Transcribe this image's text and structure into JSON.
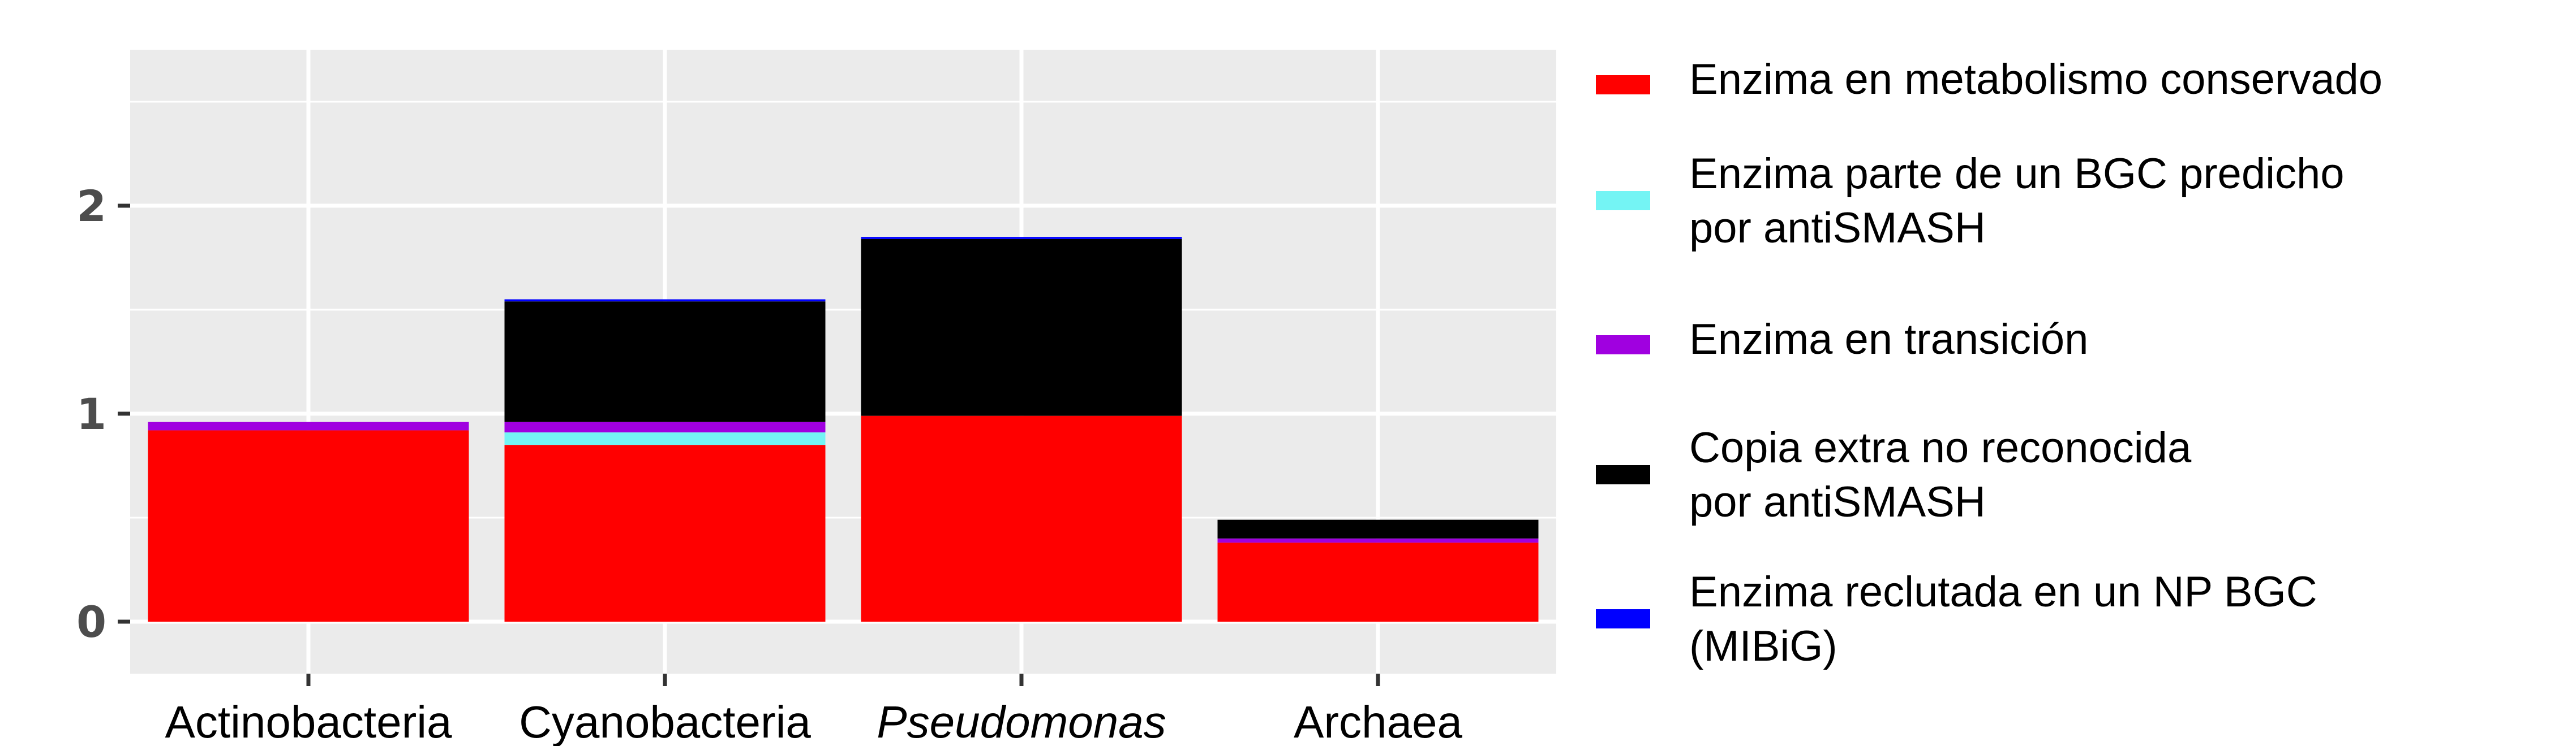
{
  "chart_data": {
    "type": "bar",
    "stacked": true,
    "categories": [
      "Actinobacteria",
      "Cyanobacteria",
      "Pseudomonas",
      "Archaea"
    ],
    "category_italic": [
      false,
      false,
      true,
      false
    ],
    "series": [
      {
        "name": "Enzima en metabolismo conservado",
        "color": "#ff0000",
        "values": [
          0.92,
          0.85,
          0.99,
          0.38
        ]
      },
      {
        "name": "Enzima parte de un BGC predicho por antiSMASH",
        "color": "#74f4f4",
        "values": [
          0.0,
          0.06,
          0.0,
          0.0
        ]
      },
      {
        "name": "Enzima en transición",
        "color": "#a000e0",
        "values": [
          0.04,
          0.05,
          0.0,
          0.02
        ]
      },
      {
        "name": "Copia extra no reconocida por antiSMASH",
        "color": "#000000",
        "values": [
          0.0,
          0.58,
          0.85,
          0.09
        ]
      },
      {
        "name": "Enzima reclutada en un NP BGC (MIBiG)",
        "color": "#0000ff",
        "values": [
          0.0,
          0.01,
          0.01,
          0.0
        ]
      }
    ],
    "legend_lines": [
      [
        "Enzima en metabolismo conservado"
      ],
      [
        "Enzima parte de un BGC predicho",
        "por antiSMASH"
      ],
      [
        "Enzima en transición"
      ],
      [
        "Copia extra no reconocida",
        "por antiSMASH"
      ],
      [
        "Enzima reclutada en un NP BGC",
        "(MIBiG)"
      ]
    ],
    "y_ticks": [
      0,
      1,
      2
    ],
    "ylim": [
      -0.25,
      2.75
    ],
    "grid": true,
    "legend_position": "right",
    "panel_color": "#ebebeb"
  }
}
